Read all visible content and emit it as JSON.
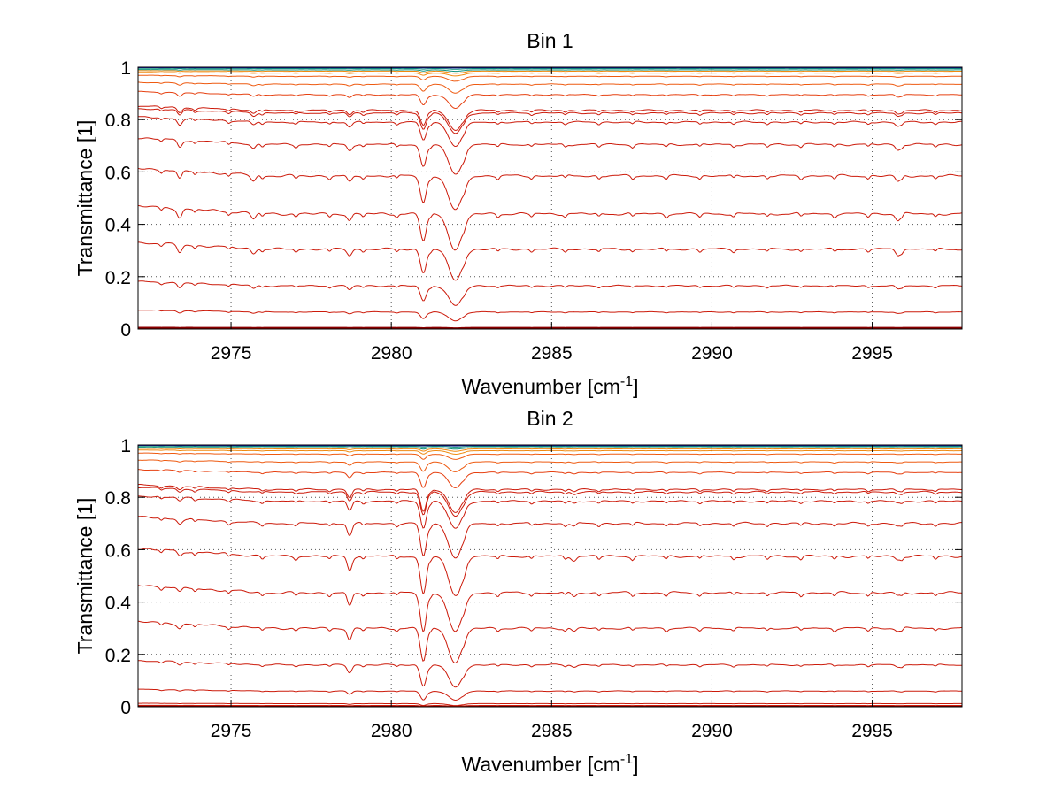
{
  "chart_data": [
    {
      "type": "line",
      "title": "Bin 1",
      "xlabel": "Wavenumber [cm",
      "xlabel_superscript": "-1",
      "xlabel_suffix": "]",
      "ylabel": "Transmittance [1]",
      "xlim": [
        2972.1,
        2997.8
      ],
      "ylim": [
        0,
        1
      ],
      "xticks": [
        2975,
        2980,
        2985,
        2990,
        2995
      ],
      "xtick_labels": [
        "2975",
        "2980",
        "2985",
        "2990",
        "2995"
      ],
      "yticks": [
        0,
        0.2,
        0.4,
        0.6,
        0.8,
        1
      ],
      "ytick_labels": [
        "0",
        "0.2",
        "0.4",
        "0.6",
        "0.8",
        "1"
      ],
      "grid": true,
      "series_baselines": [
        0.0,
        0.003,
        0.065,
        0.165,
        0.305,
        0.44,
        0.585,
        0.705,
        0.79,
        0.825,
        0.835,
        0.895,
        0.935,
        0.965,
        0.978,
        0.985,
        0.99,
        0.995,
        0.998
      ],
      "absorption_lines": [
        {
          "x": 2973.4,
          "depth": 0.14,
          "width": 0.1
        },
        {
          "x": 2975.7,
          "depth": 0.09,
          "width": 0.1
        },
        {
          "x": 2978.7,
          "depth": 0.11,
          "width": 0.1
        },
        {
          "x": 2981.0,
          "depth": 0.42,
          "width": 0.13
        },
        {
          "x": 2982.0,
          "depth": 0.55,
          "width": 0.3
        },
        {
          "x": 2995.8,
          "depth": 0.1,
          "width": 0.1
        }
      ]
    },
    {
      "type": "line",
      "title": "Bin 2",
      "xlabel": "Wavenumber [cm",
      "xlabel_superscript": "-1",
      "xlabel_suffix": "]",
      "ylabel": "Transmittance [1]",
      "xlim": [
        2972.1,
        2997.8
      ],
      "ylim": [
        0,
        1
      ],
      "xticks": [
        2975,
        2980,
        2985,
        2990,
        2995
      ],
      "xtick_labels": [
        "2975",
        "2980",
        "2985",
        "2990",
        "2995"
      ],
      "yticks": [
        0,
        0.2,
        0.4,
        0.6,
        0.8,
        1
      ],
      "ytick_labels": [
        "0",
        "0.2",
        "0.4",
        "0.6",
        "0.8",
        "1"
      ],
      "grid": true,
      "series_baselines": [
        0.0,
        0.005,
        0.012,
        0.06,
        0.16,
        0.3,
        0.435,
        0.575,
        0.7,
        0.785,
        0.82,
        0.83,
        0.895,
        0.935,
        0.965,
        0.978,
        0.985,
        0.99,
        0.995,
        0.998
      ],
      "absorption_lines": [
        {
          "x": 2973.4,
          "depth": 0.08,
          "width": 0.1
        },
        {
          "x": 2978.7,
          "depth": 0.22,
          "width": 0.1
        },
        {
          "x": 2981.0,
          "depth": 0.6,
          "width": 0.13
        },
        {
          "x": 2982.0,
          "depth": 0.62,
          "width": 0.3
        },
        {
          "x": 2985.7,
          "depth": 0.06,
          "width": 0.1
        },
        {
          "x": 2995.8,
          "depth": 0.05,
          "width": 0.1
        }
      ]
    }
  ]
}
